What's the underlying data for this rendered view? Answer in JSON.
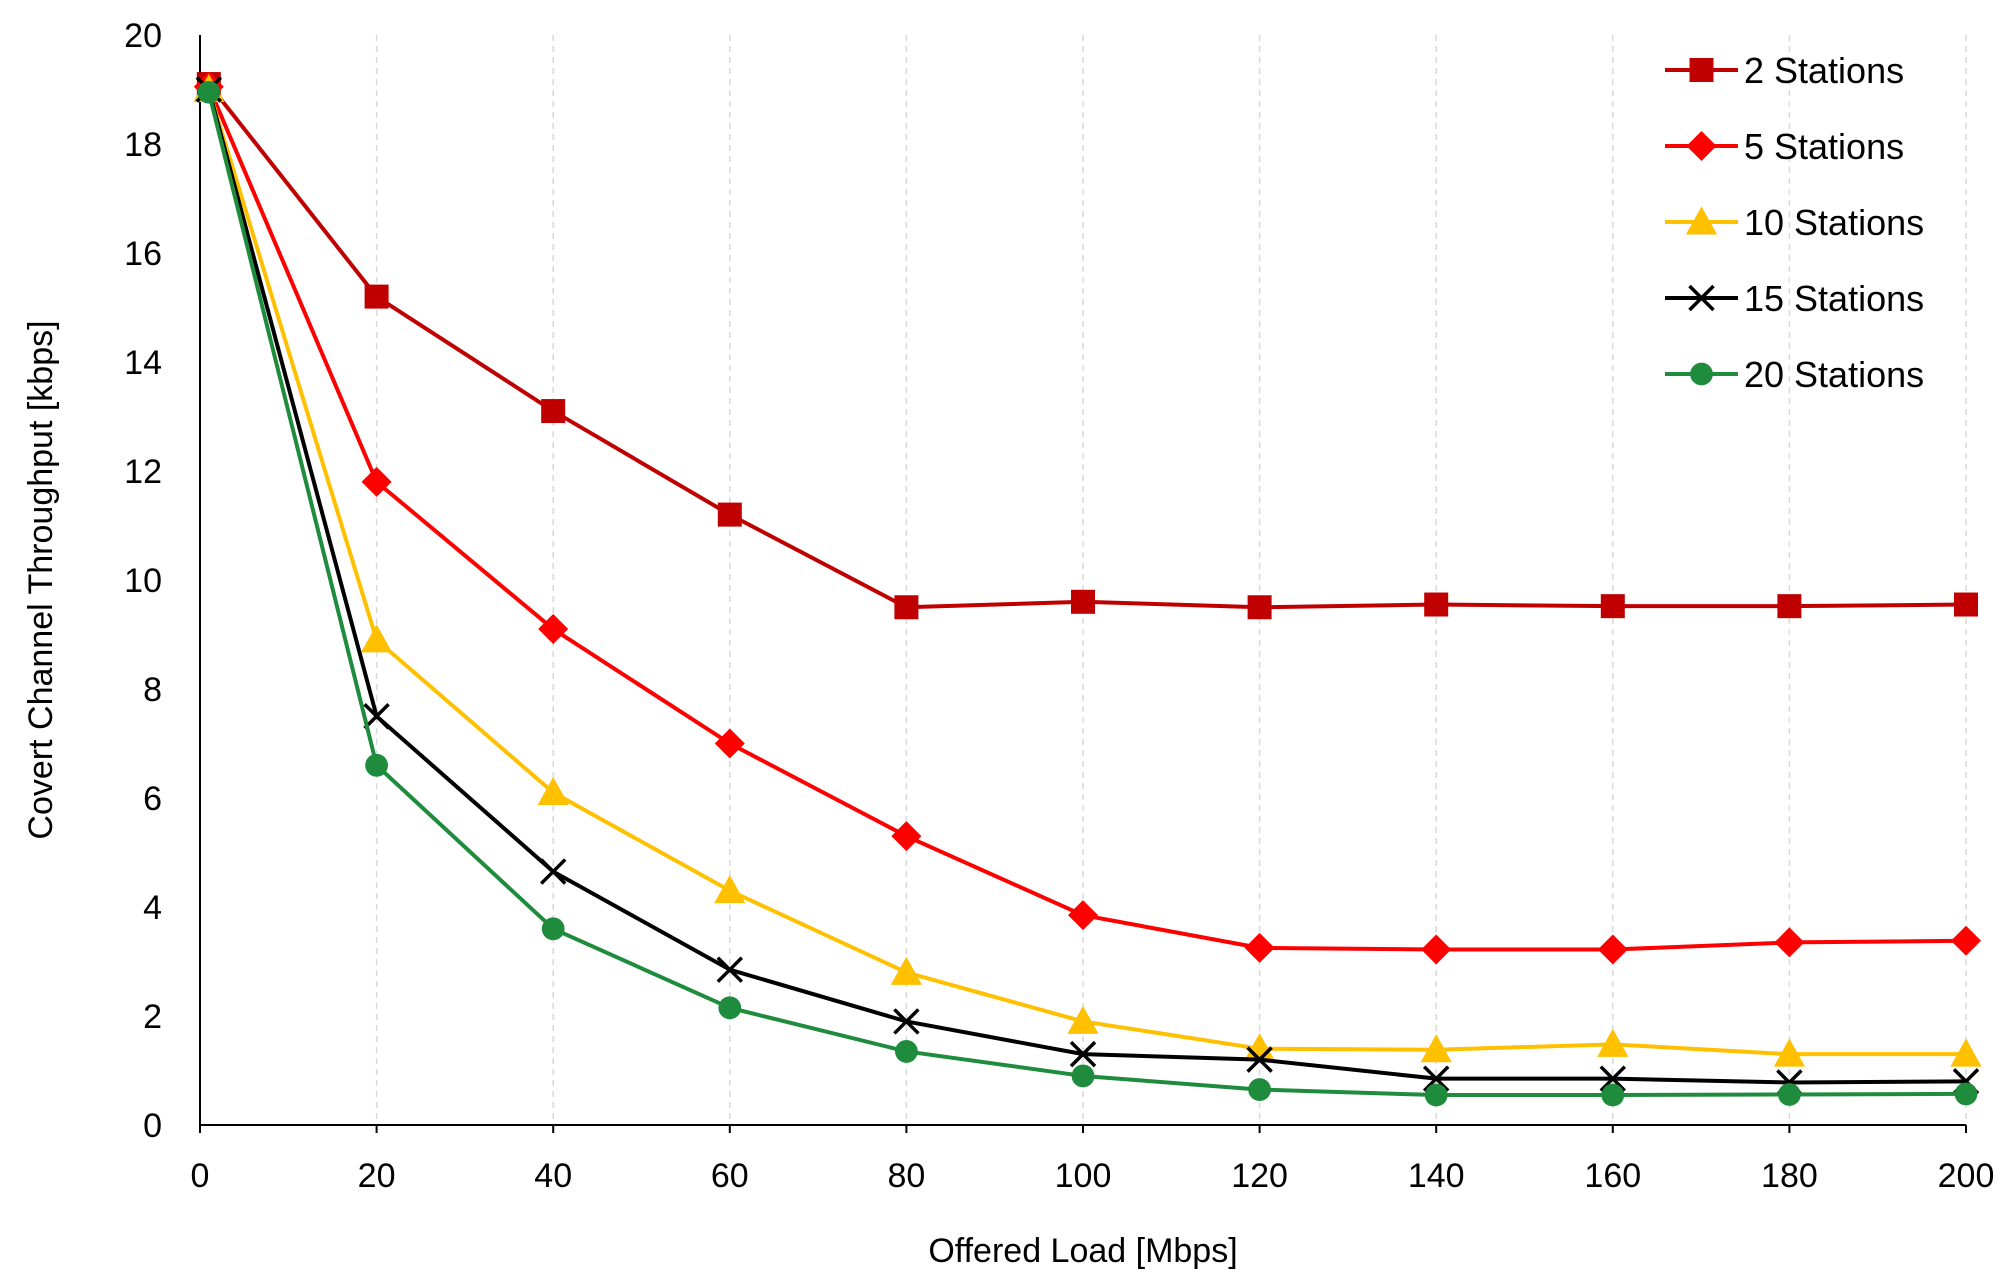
{
  "chart_data": {
    "type": "line",
    "title": "",
    "xlabel": "Offered Load [Mbps]",
    "ylabel": "Covert Channel Throughput [kbps]",
    "xlim": [
      0,
      200
    ],
    "ylim": [
      0,
      20
    ],
    "x_ticks": [
      0,
      20,
      40,
      60,
      80,
      100,
      120,
      140,
      160,
      180,
      200
    ],
    "y_ticks": [
      0,
      2,
      4,
      6,
      8,
      10,
      12,
      14,
      16,
      18,
      20
    ],
    "grid": true,
    "legend_position": "top-right",
    "x": [
      1,
      20,
      40,
      60,
      80,
      100,
      120,
      140,
      160,
      180,
      200
    ],
    "series": [
      {
        "name": "2 Stations",
        "color": "#c00000",
        "marker": "square",
        "values": [
          19.1,
          15.2,
          13.1,
          11.2,
          9.5,
          9.6,
          9.5,
          9.55,
          9.52,
          9.52,
          9.55
        ]
      },
      {
        "name": "5 Stations",
        "color": "#ff0000",
        "marker": "diamond",
        "values": [
          19.05,
          11.8,
          9.1,
          7.0,
          5.3,
          3.85,
          3.25,
          3.22,
          3.22,
          3.35,
          3.38
        ]
      },
      {
        "name": "10 Stations",
        "color": "#ffc000",
        "marker": "triangle",
        "values": [
          19.0,
          8.9,
          6.1,
          4.3,
          2.8,
          1.9,
          1.4,
          1.38,
          1.48,
          1.3,
          1.3
        ]
      },
      {
        "name": "15 Stations",
        "color": "#000000",
        "marker": "x",
        "values": [
          19.0,
          7.5,
          4.65,
          2.85,
          1.9,
          1.3,
          1.2,
          0.85,
          0.85,
          0.78,
          0.8
        ]
      },
      {
        "name": "20 Stations",
        "color": "#1e8c3c",
        "marker": "circle",
        "values": [
          18.95,
          6.6,
          3.6,
          2.15,
          1.35,
          0.9,
          0.65,
          0.55,
          0.55,
          0.56,
          0.57
        ]
      }
    ]
  }
}
